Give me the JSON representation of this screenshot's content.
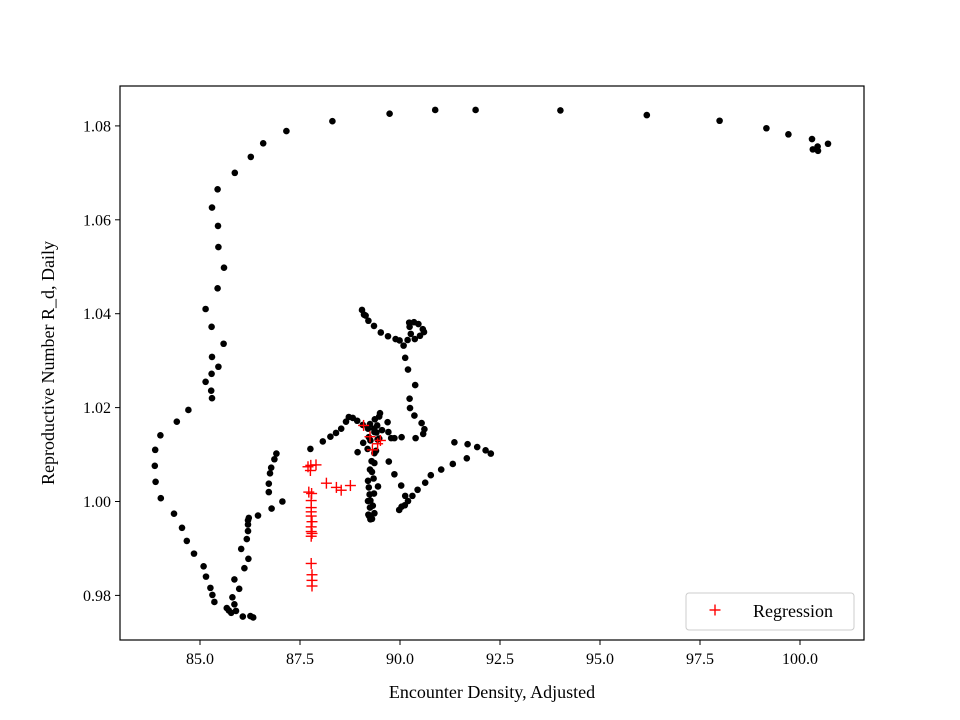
{
  "chart_data": {
    "type": "scatter",
    "title": "",
    "xlabel": "Encounter Density, Adjusted",
    "ylabel": "Reproductive Number R_d, Daily",
    "xlim": [
      83.0,
      101.6
    ],
    "ylim": [
      0.9705,
      1.0885
    ],
    "xticks": [
      85.0,
      87.5,
      90.0,
      92.5,
      95.0,
      97.5,
      100.0
    ],
    "xtick_labels": [
      "85.0",
      "87.5",
      "90.0",
      "92.5",
      "95.0",
      "97.5",
      "100.0"
    ],
    "yticks": [
      0.98,
      1.0,
      1.02,
      1.04,
      1.06,
      1.08
    ],
    "ytick_labels": [
      "0.98",
      "1.00",
      "1.02",
      "1.04",
      "1.06",
      "1.08"
    ],
    "grid": false,
    "legend_position": "lower-right",
    "series": [
      {
        "marker": "dot",
        "color": "#000000",
        "points": [
          [
            100.7,
            1.0762
          ],
          [
            100.44,
            1.0756
          ],
          [
            100.32,
            1.075
          ],
          [
            100.3,
            1.0772
          ],
          [
            100.45,
            1.0747
          ],
          [
            99.71,
            1.0782
          ],
          [
            99.16,
            1.0795
          ],
          [
            97.99,
            1.0811
          ],
          [
            96.17,
            1.0823
          ],
          [
            94.01,
            1.0833
          ],
          [
            91.89,
            1.0834
          ],
          [
            90.88,
            1.0834
          ],
          [
            89.74,
            1.0826
          ],
          [
            88.31,
            1.081
          ],
          [
            87.16,
            1.0789
          ],
          [
            86.58,
            1.0763
          ],
          [
            86.27,
            1.0734
          ],
          [
            85.87,
            1.07
          ],
          [
            85.44,
            1.0665
          ],
          [
            85.3,
            1.0626
          ],
          [
            85.45,
            1.0587
          ],
          [
            85.46,
            1.0542
          ],
          [
            85.6,
            1.0498
          ],
          [
            85.44,
            1.0454
          ],
          [
            85.14,
            1.041
          ],
          [
            85.29,
            1.0372
          ],
          [
            85.59,
            1.0336
          ],
          [
            85.46,
            1.0287
          ],
          [
            85.29,
            1.0272
          ],
          [
            85.3,
            1.0308
          ],
          [
            85.14,
            1.0255
          ],
          [
            85.28,
            1.0236
          ],
          [
            85.3,
            1.022
          ],
          [
            84.71,
            1.0195
          ],
          [
            84.42,
            1.017
          ],
          [
            84.01,
            1.0141
          ],
          [
            83.88,
            1.011
          ],
          [
            83.87,
            1.0076
          ],
          [
            83.89,
            1.0042
          ],
          [
            84.02,
            1.0007
          ],
          [
            84.35,
            0.9974
          ],
          [
            84.55,
            0.9944
          ],
          [
            84.67,
            0.9916
          ],
          [
            84.85,
            0.9889
          ],
          [
            85.09,
            0.9862
          ],
          [
            85.15,
            0.984
          ],
          [
            85.26,
            0.9816
          ],
          [
            85.31,
            0.9801
          ],
          [
            85.36,
            0.9786
          ],
          [
            85.67,
            0.9773
          ],
          [
            85.78,
            0.9763
          ],
          [
            85.9,
            0.9767
          ],
          [
            86.07,
            0.9755
          ],
          [
            86.26,
            0.9756
          ],
          [
            86.33,
            0.9753
          ],
          [
            85.72,
            0.9768
          ],
          [
            85.86,
            0.9781
          ],
          [
            85.81,
            0.9796
          ],
          [
            85.98,
            0.9814
          ],
          [
            85.86,
            0.9834
          ],
          [
            86.11,
            0.9858
          ],
          [
            86.21,
            0.9878
          ],
          [
            86.03,
            0.9899
          ],
          [
            86.17,
            0.992
          ],
          [
            86.2,
            0.9937
          ],
          [
            86.2,
            0.9951
          ],
          [
            86.2,
            0.996
          ],
          [
            86.22,
            0.9965
          ],
          [
            86.45,
            0.997
          ],
          [
            86.79,
            0.9985
          ],
          [
            87.06,
            1.0
          ],
          [
            86.72,
            1.002
          ],
          [
            86.72,
            1.0038
          ],
          [
            86.75,
            1.006
          ],
          [
            86.78,
            1.0072
          ],
          [
            86.86,
            1.009
          ],
          [
            86.91,
            1.0102
          ],
          [
            87.76,
            1.0112
          ],
          [
            88.07,
            1.0128
          ],
          [
            88.26,
            1.0138
          ],
          [
            88.4,
            1.0146
          ],
          [
            88.53,
            1.0155
          ],
          [
            88.65,
            1.017
          ],
          [
            88.72,
            1.018
          ],
          [
            88.82,
            1.0178
          ],
          [
            88.93,
            1.0172
          ],
          [
            89.07,
            1.0163
          ],
          [
            89.2,
            1.0155
          ],
          [
            89.36,
            1.0148
          ],
          [
            89.22,
            1.0137
          ],
          [
            89.08,
            1.0125
          ],
          [
            89.19,
            1.0112
          ],
          [
            89.36,
            1.0103
          ],
          [
            89.36,
            1.0082
          ],
          [
            89.3,
            1.0063
          ],
          [
            89.2,
            1.0044
          ],
          [
            89.22,
            1.003
          ],
          [
            89.24,
            1.0015
          ],
          [
            89.26,
            1.0002
          ],
          [
            89.25,
            0.9987
          ],
          [
            89.21,
            0.9972
          ],
          [
            89.26,
            0.9962
          ],
          [
            89.3,
            0.9963
          ],
          [
            89.23,
            0.9969
          ],
          [
            89.36,
            0.9975
          ],
          [
            89.32,
            0.9991
          ],
          [
            89.2,
            1.0001
          ],
          [
            89.35,
            1.0017
          ],
          [
            89.45,
            1.0032
          ],
          [
            89.34,
            1.0049
          ],
          [
            89.25,
            1.0068
          ],
          [
            89.29,
            1.0086
          ],
          [
            89.4,
            1.0108
          ],
          [
            89.44,
            1.0132
          ],
          [
            89.55,
            1.0152
          ],
          [
            89.69,
            1.0169
          ],
          [
            89.5,
            1.0188
          ],
          [
            89.43,
            1.0162
          ],
          [
            89.41,
            1.0147
          ],
          [
            89.48,
            1.0134
          ],
          [
            89.71,
            1.0148
          ],
          [
            89.78,
            1.0135
          ],
          [
            89.86,
            1.0135
          ],
          [
            90.04,
            1.0137
          ],
          [
            90.39,
            1.0135
          ],
          [
            90.58,
            1.0144
          ],
          [
            90.61,
            1.0154
          ],
          [
            90.54,
            1.0167
          ],
          [
            90.36,
            1.0183
          ],
          [
            90.25,
            1.0199
          ],
          [
            90.24,
            1.0219
          ],
          [
            90.38,
            1.0248
          ],
          [
            90.2,
            1.0281
          ],
          [
            90.13,
            1.0306
          ],
          [
            90.09,
            1.0332
          ],
          [
            90.27,
            1.0357
          ],
          [
            90.24,
            1.0372
          ],
          [
            90.23,
            1.0381
          ],
          [
            90.35,
            1.0382
          ],
          [
            90.46,
            1.0378
          ],
          [
            90.57,
            1.0367
          ],
          [
            90.6,
            1.0361
          ],
          [
            90.5,
            1.0353
          ],
          [
            90.37,
            1.0346
          ],
          [
            90.19,
            1.0344
          ],
          [
            89.99,
            1.0343
          ],
          [
            89.89,
            1.0346
          ],
          [
            89.7,
            1.0352
          ],
          [
            89.52,
            1.036
          ],
          [
            89.35,
            1.0374
          ],
          [
            89.21,
            1.0385
          ],
          [
            89.14,
            1.0396
          ],
          [
            89.05,
            1.0408
          ],
          [
            89.1,
            1.0398
          ],
          [
            88.94,
            1.0105
          ],
          [
            89.26,
            1.013
          ],
          [
            89.35,
            1.0155
          ],
          [
            89.72,
            1.0085
          ],
          [
            89.86,
            1.0058
          ],
          [
            90.03,
            1.0034
          ],
          [
            90.13,
            1.0012
          ],
          [
            90.12,
            0.9992
          ],
          [
            89.98,
            0.9982
          ],
          [
            90.04,
            0.9989
          ],
          [
            90.2,
            1.0001
          ],
          [
            90.31,
            1.0012
          ],
          [
            90.44,
            1.0025
          ],
          [
            90.63,
            1.004
          ],
          [
            90.77,
            1.0056
          ],
          [
            91.03,
            1.0068
          ],
          [
            91.32,
            1.008
          ],
          [
            91.67,
            1.0092
          ],
          [
            92.27,
            1.0102
          ],
          [
            92.14,
            1.0109
          ],
          [
            91.93,
            1.0116
          ],
          [
            91.69,
            1.0122
          ],
          [
            91.36,
            1.0126
          ],
          [
            89.25,
            1.0165
          ],
          [
            89.37,
            1.0175
          ],
          [
            89.48,
            1.0181
          ]
        ]
      },
      {
        "name": "Regression",
        "marker": "plus",
        "color": "#ff0000",
        "points": [
          [
            87.77,
            1.0077
          ],
          [
            87.7,
            1.0074
          ],
          [
            87.9,
            1.0078
          ],
          [
            87.76,
            1.0066
          ],
          [
            87.72,
            1.002
          ],
          [
            87.79,
            1.0017
          ],
          [
            87.78,
            1.0002
          ],
          [
            87.78,
            0.9987
          ],
          [
            87.78,
            0.9978
          ],
          [
            87.78,
            0.9969
          ],
          [
            87.8,
            0.9957
          ],
          [
            87.78,
            0.9946
          ],
          [
            87.78,
            0.9936
          ],
          [
            87.78,
            0.9926
          ],
          [
            87.8,
            0.9932
          ],
          [
            87.78,
            0.9868
          ],
          [
            87.8,
            0.9844
          ],
          [
            87.8,
            0.9832
          ],
          [
            87.8,
            0.982
          ],
          [
            88.16,
            1.0039
          ],
          [
            88.41,
            1.003
          ],
          [
            88.53,
            1.0024
          ],
          [
            88.76,
            1.0034
          ],
          [
            89.09,
            1.0162
          ],
          [
            89.25,
            1.0138
          ],
          [
            89.44,
            1.0123
          ],
          [
            89.51,
            1.013
          ],
          [
            89.31,
            1.011
          ]
        ]
      }
    ],
    "legend": [
      {
        "label": "Regression",
        "marker": "plus",
        "color": "#ff0000"
      }
    ]
  }
}
